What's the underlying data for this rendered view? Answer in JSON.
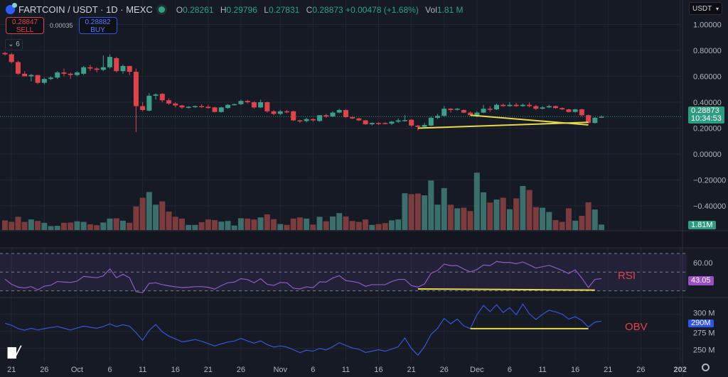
{
  "header": {
    "symbol": "FARTCOIN / USDT · 1D · MEXC",
    "o_label": "O",
    "o": "0.28261",
    "h_label": "H",
    "h": "0.29796",
    "l_label": "L",
    "l": "0.27831",
    "c_label": "C",
    "c": "0.28873",
    "change": "+0.00478 (+1.68%)",
    "vol_label": "Vol",
    "vol": "1.81 M"
  },
  "trade": {
    "sell_price": "0.28847",
    "sell_label": "SELL",
    "spread": "0.00035",
    "buy_price": "0.28882",
    "buy_label": "BUY"
  },
  "indicators_collapse": "⌄ 6",
  "currency_select": "USDT",
  "last_price_label": "0.28873",
  "countdown": "10:34:53",
  "volume_label": "1.81M",
  "rsi_value_label": "43.05",
  "obv_value_label": "290M",
  "annotations": {
    "rsi": "RSI",
    "obv": "OBV"
  },
  "logo": "TV",
  "colors": {
    "up": "#3aa08a",
    "down": "#e0434b",
    "vol_up": "#3a6f6b",
    "vol_down": "#7c3b3d",
    "rsi": "#8e5ac4",
    "obv": "#3556d8",
    "trendline": "#e8d84a",
    "background": "#161a25",
    "grid": "#222633"
  },
  "chart_data": [
    {
      "type": "candlestick",
      "title": "FARTCOIN / USDT · 1D · MEXC",
      "y_ticks": [
        "1.00000",
        "0.80000",
        "0.60000",
        "0.40000",
        "0.20000",
        "0.00000",
        "−0.20000",
        "−0.40000"
      ],
      "y_tick_values": [
        1.0,
        0.8,
        0.6,
        0.4,
        0.2,
        0.0,
        -0.2,
        -0.4
      ],
      "ylim": [
        -0.5,
        1.1
      ],
      "grid": true,
      "x_ticks": [
        {
          "label": "21",
          "date": "09-21"
        },
        {
          "label": "26",
          "date": "09-26"
        },
        {
          "label": "Oct",
          "date": "10-01"
        },
        {
          "label": "6",
          "date": "10-06"
        },
        {
          "label": "11",
          "date": "10-11"
        },
        {
          "label": "16",
          "date": "10-16"
        },
        {
          "label": "21",
          "date": "10-21"
        },
        {
          "label": "26",
          "date": "10-26"
        },
        {
          "label": "Nov",
          "date": "11-01"
        },
        {
          "label": "6",
          "date": "11-06"
        },
        {
          "label": "11",
          "date": "11-11"
        },
        {
          "label": "16",
          "date": "11-16"
        },
        {
          "label": "21",
          "date": "11-21"
        },
        {
          "label": "26",
          "date": "11-26"
        },
        {
          "label": "Dec",
          "date": "12-01"
        },
        {
          "label": "6",
          "date": "12-06"
        },
        {
          "label": "11",
          "date": "12-11"
        },
        {
          "label": "16",
          "date": "12-16"
        },
        {
          "label": "21",
          "date": "12-21"
        },
        {
          "label": "26",
          "date": "12-26"
        },
        {
          "label": "202",
          "date": "01-01"
        }
      ],
      "columns": [
        "date",
        "open",
        "high",
        "low",
        "close"
      ],
      "candles": [
        [
          "09-20",
          0.78,
          0.79,
          0.76,
          0.77
        ],
        [
          "09-21",
          0.77,
          0.78,
          0.7,
          0.71
        ],
        [
          "09-22",
          0.71,
          0.72,
          0.61,
          0.62
        ],
        [
          "09-23",
          0.62,
          0.64,
          0.6,
          0.6
        ],
        [
          "09-24",
          0.6,
          0.62,
          0.56,
          0.61
        ],
        [
          "09-25",
          0.61,
          0.61,
          0.54,
          0.55
        ],
        [
          "09-26",
          0.55,
          0.59,
          0.54,
          0.58
        ],
        [
          "09-27",
          0.58,
          0.6,
          0.57,
          0.59
        ],
        [
          "09-28",
          0.59,
          0.64,
          0.58,
          0.63
        ],
        [
          "09-29",
          0.63,
          0.66,
          0.6,
          0.62
        ],
        [
          "09-30",
          0.62,
          0.63,
          0.58,
          0.61
        ],
        [
          "10-01",
          0.61,
          0.64,
          0.6,
          0.63
        ],
        [
          "10-02",
          0.62,
          0.68,
          0.61,
          0.67
        ],
        [
          "10-03",
          0.67,
          0.69,
          0.64,
          0.66
        ],
        [
          "10-04",
          0.66,
          0.67,
          0.63,
          0.65
        ],
        [
          "10-05",
          0.65,
          0.76,
          0.64,
          0.67
        ],
        [
          "10-06",
          0.67,
          0.77,
          0.66,
          0.75
        ],
        [
          "10-07",
          0.74,
          0.75,
          0.63,
          0.64
        ],
        [
          "10-08",
          0.64,
          0.69,
          0.62,
          0.68
        ],
        [
          "10-09",
          0.68,
          0.68,
          0.61,
          0.635
        ],
        [
          "10-10",
          0.635,
          0.66,
          0.17,
          0.37
        ],
        [
          "10-11",
          0.37,
          0.4,
          0.33,
          0.34
        ],
        [
          "10-12",
          0.335,
          0.47,
          0.33,
          0.45
        ],
        [
          "10-13",
          0.45,
          0.47,
          0.42,
          0.46
        ],
        [
          "10-14",
          0.465,
          0.47,
          0.4,
          0.415
        ],
        [
          "10-15",
          0.415,
          0.43,
          0.38,
          0.39
        ],
        [
          "10-16",
          0.39,
          0.4,
          0.36,
          0.375
        ],
        [
          "10-17",
          0.375,
          0.38,
          0.35,
          0.36
        ],
        [
          "10-18",
          0.36,
          0.37,
          0.35,
          0.365
        ],
        [
          "10-19",
          0.365,
          0.375,
          0.355,
          0.37
        ],
        [
          "10-20",
          0.37,
          0.385,
          0.355,
          0.365
        ],
        [
          "10-21",
          0.365,
          0.38,
          0.35,
          0.355
        ],
        [
          "10-22",
          0.36,
          0.365,
          0.32,
          0.325
        ],
        [
          "10-23",
          0.325,
          0.365,
          0.32,
          0.36
        ],
        [
          "10-24",
          0.355,
          0.385,
          0.35,
          0.38
        ],
        [
          "10-25",
          0.38,
          0.39,
          0.375,
          0.385
        ],
        [
          "10-26",
          0.385,
          0.42,
          0.38,
          0.41
        ],
        [
          "10-27",
          0.41,
          0.42,
          0.39,
          0.4
        ],
        [
          "10-28",
          0.4,
          0.41,
          0.35,
          0.36
        ],
        [
          "10-29",
          0.36,
          0.42,
          0.355,
          0.4
        ],
        [
          "10-30",
          0.4,
          0.405,
          0.32,
          0.33
        ],
        [
          "10-31",
          0.33,
          0.34,
          0.3,
          0.31
        ],
        [
          "11-01",
          0.31,
          0.34,
          0.3,
          0.33
        ],
        [
          "11-02",
          0.33,
          0.34,
          0.315,
          0.325
        ],
        [
          "11-03",
          0.33,
          0.335,
          0.255,
          0.26
        ],
        [
          "11-04",
          0.26,
          0.265,
          0.24,
          0.255
        ],
        [
          "11-05",
          0.255,
          0.28,
          0.245,
          0.27
        ],
        [
          "11-06",
          0.27,
          0.275,
          0.25,
          0.26
        ],
        [
          "11-07",
          0.255,
          0.3,
          0.25,
          0.3
        ],
        [
          "11-08",
          0.3,
          0.31,
          0.28,
          0.29
        ],
        [
          "11-09",
          0.29,
          0.33,
          0.285,
          0.32
        ],
        [
          "11-10",
          0.32,
          0.35,
          0.315,
          0.34
        ],
        [
          "11-11",
          0.34,
          0.345,
          0.28,
          0.285
        ],
        [
          "11-12",
          0.285,
          0.295,
          0.27,
          0.275
        ],
        [
          "11-13",
          0.275,
          0.28,
          0.255,
          0.26
        ],
        [
          "11-14",
          0.26,
          0.265,
          0.225,
          0.23
        ],
        [
          "11-15",
          0.23,
          0.245,
          0.22,
          0.24
        ],
        [
          "11-16",
          0.24,
          0.245,
          0.225,
          0.235
        ],
        [
          "11-17",
          0.24,
          0.245,
          0.23,
          0.235
        ],
        [
          "11-18",
          0.235,
          0.255,
          0.225,
          0.25
        ],
        [
          "11-19",
          0.25,
          0.275,
          0.24,
          0.26
        ],
        [
          "11-20",
          0.26,
          0.3,
          0.25,
          0.262
        ],
        [
          "11-21",
          0.265,
          0.27,
          0.21,
          0.22
        ],
        [
          "11-22",
          0.22,
          0.225,
          0.18,
          0.21
        ],
        [
          "11-23",
          0.21,
          0.24,
          0.205,
          0.225
        ],
        [
          "11-24",
          0.22,
          0.29,
          0.215,
          0.28
        ],
        [
          "11-25",
          0.28,
          0.31,
          0.27,
          0.295
        ],
        [
          "11-26",
          0.295,
          0.37,
          0.29,
          0.35
        ],
        [
          "11-27",
          0.35,
          0.355,
          0.32,
          0.34
        ],
        [
          "11-28",
          0.345,
          0.355,
          0.335,
          0.35
        ],
        [
          "11-29",
          0.34,
          0.345,
          0.315,
          0.32
        ],
        [
          "11-30",
          0.32,
          0.33,
          0.295,
          0.3
        ],
        [
          "12-01",
          0.3,
          0.33,
          0.285,
          0.32
        ],
        [
          "12-02",
          0.32,
          0.38,
          0.315,
          0.35
        ],
        [
          "12-03",
          0.35,
          0.37,
          0.325,
          0.345
        ],
        [
          "12-04",
          0.345,
          0.39,
          0.34,
          0.38
        ],
        [
          "12-05",
          0.38,
          0.39,
          0.365,
          0.37
        ],
        [
          "12-06",
          0.37,
          0.4,
          0.365,
          0.38
        ],
        [
          "12-07",
          0.38,
          0.395,
          0.365,
          0.37
        ],
        [
          "12-08",
          0.37,
          0.39,
          0.365,
          0.38
        ],
        [
          "12-09",
          0.38,
          0.4,
          0.36,
          0.37
        ],
        [
          "12-10",
          0.37,
          0.38,
          0.34,
          0.35
        ],
        [
          "12-11",
          0.35,
          0.37,
          0.345,
          0.36
        ],
        [
          "12-12",
          0.36,
          0.38,
          0.355,
          0.37
        ],
        [
          "12-13",
          0.37,
          0.375,
          0.35,
          0.355
        ],
        [
          "12-14",
          0.355,
          0.36,
          0.34,
          0.345
        ],
        [
          "12-15",
          0.345,
          0.35,
          0.32,
          0.325
        ],
        [
          "12-16",
          0.325,
          0.35,
          0.32,
          0.345
        ],
        [
          "12-17",
          0.345,
          0.35,
          0.29,
          0.3
        ],
        [
          "12-18",
          0.3,
          0.305,
          0.235,
          0.24
        ],
        [
          "12-19",
          0.24,
          0.285,
          0.235,
          0.28
        ],
        [
          "12-20",
          0.28261,
          0.29796,
          0.27831,
          0.28873
        ]
      ],
      "volume_unit": "M",
      "volume": [
        3.2,
        2.7,
        4.4,
        2.7,
        3.5,
        3.0,
        2.4,
        1.3,
        1.4,
        2.4,
        2.5,
        2.9,
        2.7,
        1.9,
        1.6,
        2.5,
        3.8,
        3.9,
        3.1,
        2.4,
        7.8,
        10.7,
        12.6,
        8.4,
        9.5,
        6.1,
        4.4,
        3.8,
        1.7,
        1.7,
        2.6,
        3.5,
        3.3,
        2.8,
        3.0,
        1.5,
        3.9,
        3.8,
        3.5,
        4.2,
        5.2,
        3.6,
        2.0,
        1.7,
        3.8,
        4.2,
        3.8,
        1.8,
        4.4,
        2.9,
        4.5,
        5.6,
        4.5,
        3.0,
        2.7,
        3.5,
        1.7,
        2.0,
        2.3,
        3.2,
        3.5,
        12.2,
        11.9,
        12.1,
        11.5,
        16.4,
        8.4,
        13.9,
        8.4,
        7.2,
        7.4,
        6.3,
        19.0,
        12.5,
        9.1,
        10.1,
        10.7,
        6.9,
        10.5,
        14.6,
        13.3,
        7.6,
        7.4,
        6.0,
        3.3,
        2.7,
        7.2,
        3.1,
        4.7,
        9.2,
        6.8,
        1.81
      ],
      "last_price": 0.28873,
      "trendlines": [
        {
          "from": [
            "11-22",
            0.2
          ],
          "to": [
            "12-18",
            0.245
          ]
        },
        {
          "from": [
            "11-30",
            0.3
          ],
          "to": [
            "12-18",
            0.225
          ]
        }
      ]
    },
    {
      "type": "line",
      "name": "RSI",
      "y_ticks": [
        "60.00"
      ],
      "bands": [
        70,
        50,
        30
      ],
      "ylim": [
        24,
        76
      ],
      "values": [
        42.4,
        37,
        34,
        33,
        34.5,
        31,
        35,
        36,
        40,
        39.4,
        39,
        40.4,
        45.4,
        44.7,
        44,
        46,
        53.5,
        44,
        47.7,
        44,
        29,
        28,
        38,
        38.6,
        36.6,
        35.3,
        34.3,
        33.5,
        33.8,
        34.5,
        34.5,
        33.8,
        31.8,
        35.6,
        38.6,
        39.4,
        43,
        42,
        38.6,
        43,
        37,
        35.8,
        38.9,
        38.6,
        32.8,
        32,
        34.3,
        33.3,
        39.6,
        39.4,
        43.7,
        46.2,
        40.9,
        40,
        38.6,
        34.8,
        36.6,
        36.6,
        36.6,
        39.9,
        42.2,
        42.2,
        35.6,
        34,
        37.3,
        48.7,
        51.8,
        58.6,
        57,
        57,
        53.3,
        50.3,
        52.8,
        57.6,
        57,
        61.4,
        60.4,
        60.4,
        59,
        60.9,
        57.8,
        54.3,
        55.8,
        57.3,
        54.6,
        51.8,
        48.5,
        52.5,
        43.7,
        33.5,
        42.2,
        43.05
      ],
      "trendline": {
        "from": [
          "11-22",
          32.0
        ],
        "to": [
          "12-19",
          30.8
        ]
      }
    },
    {
      "type": "line",
      "name": "OBV",
      "unit": "M",
      "y_ticks": [
        "300 M",
        "275 M",
        "250 M"
      ],
      "y_tick_values": [
        300,
        275,
        250
      ],
      "ylim": [
        228,
        320
      ],
      "values": [
        286.8,
        284,
        279,
        276.7,
        279.5,
        277,
        279,
        280.6,
        282,
        279.5,
        277,
        280,
        282.6,
        281,
        279.5,
        282,
        286,
        282,
        284.7,
        282.6,
        273,
        262,
        276.4,
        285,
        274.3,
        268,
        264,
        259.7,
        261,
        263,
        260.4,
        257,
        253.5,
        256.6,
        259.4,
        260.8,
        264.6,
        261,
        257.7,
        261,
        255.6,
        252,
        253.5,
        252,
        248,
        243.8,
        247.3,
        246,
        250,
        247.6,
        252.5,
        258.4,
        254.2,
        250.7,
        248.6,
        244,
        245.9,
        248,
        245.9,
        249,
        252.5,
        265.3,
        250,
        240,
        252.5,
        270.5,
        279.5,
        294,
        286,
        293,
        283,
        279,
        299.3,
        313,
        304,
        314,
        302.8,
        309.7,
        299.3,
        315,
        300.7,
        292.4,
        300,
        306,
        303.5,
        300.3,
        293,
        296.5,
        291,
        281.3,
        288.5,
        290
      ],
      "trendline": {
        "from": [
          "11-30",
          279
        ],
        "to": [
          "12-18",
          279
        ]
      }
    }
  ]
}
